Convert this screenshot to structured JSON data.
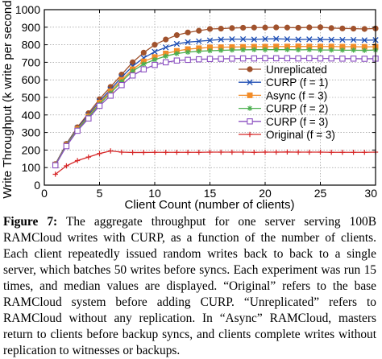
{
  "chart_data": {
    "type": "line",
    "title": "",
    "xlabel": "Client Count (number of clients)",
    "ylabel": "Write Throughput (k write per second)",
    "xlim": [
      0,
      30
    ],
    "ylim": [
      0,
      1000
    ],
    "xticks": [
      0,
      5,
      10,
      15,
      20,
      25,
      30
    ],
    "yticks": [
      0,
      100,
      200,
      300,
      400,
      500,
      600,
      700,
      800,
      900,
      1000
    ],
    "grid": true,
    "legend_position": "inside-bottom-right",
    "x": [
      1,
      2,
      3,
      4,
      5,
      6,
      7,
      8,
      9,
      10,
      11,
      12,
      13,
      14,
      15,
      16,
      17,
      18,
      19,
      20,
      21,
      22,
      23,
      24,
      25,
      26,
      27,
      28,
      29,
      30
    ],
    "series": [
      {
        "name": "Unreplicated",
        "color": "#a0522d",
        "marker": "circle",
        "values": [
          120,
          235,
          330,
          410,
          490,
          560,
          630,
          700,
          755,
          800,
          830,
          855,
          870,
          880,
          890,
          892,
          895,
          897,
          898,
          898,
          899,
          898,
          897,
          899,
          900,
          895,
          893,
          892,
          890,
          893
        ]
      },
      {
        "name": "CURP (f = 1)",
        "color": "#1f4fb4",
        "marker": "x",
        "values": [
          118,
          232,
          325,
          400,
          478,
          545,
          615,
          678,
          725,
          760,
          785,
          805,
          815,
          820,
          825,
          830,
          832,
          832,
          830,
          833,
          834,
          832,
          830,
          831,
          830,
          829,
          828,
          828,
          826,
          827
        ]
      },
      {
        "name": "Async (f = 3)",
        "color": "#f28c28",
        "marker": "square",
        "values": [
          116,
          228,
          320,
          392,
          470,
          535,
          600,
          660,
          705,
          730,
          750,
          765,
          775,
          780,
          785,
          786,
          787,
          788,
          789,
          789,
          790,
          790,
          791,
          790,
          790,
          790,
          789,
          789,
          788,
          789
        ]
      },
      {
        "name": "CURP (f = 2)",
        "color": "#4caf50",
        "marker": "star",
        "values": [
          115,
          226,
          315,
          388,
          462,
          525,
          590,
          650,
          690,
          715,
          735,
          750,
          758,
          763,
          766,
          768,
          770,
          771,
          772,
          772,
          772,
          772,
          771,
          772,
          770,
          770,
          769,
          769,
          768,
          770
        ]
      },
      {
        "name": "CURP (f = 3)",
        "color": "#8a4fc0",
        "marker": "open-square",
        "values": [
          113,
          222,
          310,
          380,
          452,
          510,
          570,
          625,
          660,
          685,
          700,
          710,
          714,
          717,
          719,
          720,
          721,
          722,
          722,
          723,
          723,
          723,
          722,
          723,
          722,
          722,
          721,
          721,
          720,
          721
        ]
      },
      {
        "name": "Original (f = 3)",
        "color": "#d62728",
        "marker": "plus",
        "values": [
          62,
          110,
          140,
          160,
          180,
          195,
          188,
          186,
          186,
          187,
          187,
          187,
          187,
          187,
          188,
          188,
          188,
          188,
          187,
          188,
          188,
          189,
          188,
          188,
          188,
          187,
          187,
          187,
          187,
          188
        ]
      }
    ]
  },
  "caption": {
    "label": "Figure 7:",
    "text": "  The aggregate throughput for one server serving 100B RAMCloud writes with CURP, as a function of the number of clients. Each client repeatedly issued random writes back to back to a single server, which batches 50 writes before syncs.  Each experiment was run 15 times, and median values are displayed.  “Original” refers to the base RAMCloud system before adding CURP. “Unreplicated” refers to RAMCloud without any replication.  In “Async” RAMCloud, masters return to clients before backup syncs, and clients complete writes without replication to witnesses or backups."
  }
}
